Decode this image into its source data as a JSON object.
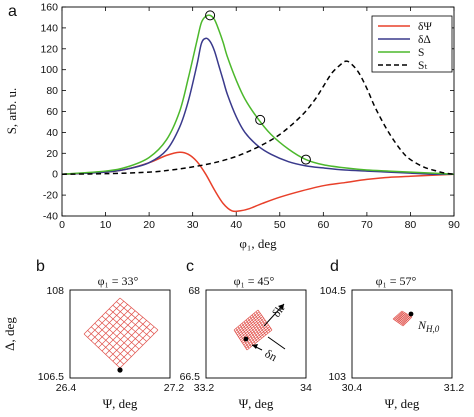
{
  "chart_data": [
    {
      "type": "line",
      "panel_label": "a",
      "xlabel": "φ₁, deg",
      "ylabel": "S, arb. u.",
      "xlim": [
        0,
        90
      ],
      "ylim": [
        -40,
        160
      ],
      "xticks": [
        "0",
        "10",
        "20",
        "30",
        "40",
        "50",
        "60",
        "70",
        "80",
        "90"
      ],
      "yticks": [
        "-40",
        "-20",
        "0",
        "20",
        "40",
        "60",
        "80",
        "100",
        "120",
        "140",
        "160"
      ],
      "legend_position": "top-right",
      "series": [
        {
          "name": "δΨ",
          "color": "#e8402a",
          "style": "solid",
          "x": [
            0,
            10,
            15,
            20,
            24,
            27,
            29,
            31,
            33,
            35,
            37,
            39,
            41,
            43,
            46,
            50,
            55,
            60,
            65,
            70,
            75,
            80,
            85,
            90
          ],
          "y": [
            0,
            2,
            5,
            11,
            18,
            21,
            19,
            12,
            0,
            -15,
            -28,
            -35,
            -35,
            -33,
            -28,
            -22,
            -16,
            -11,
            -8,
            -5,
            -3,
            -2,
            -1,
            0
          ]
        },
        {
          "name": "δΔ",
          "color": "#3a3a8c",
          "style": "solid",
          "x": [
            0,
            10,
            15,
            20,
            24,
            27,
            29,
            31,
            32,
            33,
            34,
            35,
            36,
            37,
            38,
            40,
            42,
            45,
            48,
            52,
            56,
            60,
            65,
            70,
            75,
            80,
            85,
            90
          ],
          "y": [
            0,
            2,
            5,
            11,
            23,
            45,
            70,
            105,
            125,
            130,
            127,
            118,
            104,
            90,
            76,
            55,
            40,
            27,
            19,
            12,
            8,
            6,
            4,
            3,
            2,
            1,
            0,
            0
          ]
        },
        {
          "name": "S",
          "color": "#4cb82c",
          "style": "solid",
          "x": [
            0,
            10,
            15,
            20,
            24,
            27,
            29,
            31,
            32,
            33,
            34,
            35,
            36,
            37,
            38,
            40,
            42,
            45,
            48,
            52,
            56,
            60,
            65,
            70,
            75,
            80,
            85,
            90
          ],
          "y": [
            0,
            3,
            7,
            16,
            33,
            60,
            92,
            128,
            145,
            151,
            152,
            148,
            138,
            126,
            112,
            90,
            72,
            53,
            38,
            24,
            14,
            9,
            6,
            4,
            3,
            2,
            1,
            0
          ]
        },
        {
          "name": "Sₜ",
          "color": "#000000",
          "style": "dashed",
          "x": [
            0,
            10,
            20,
            25,
            30,
            35,
            40,
            45,
            50,
            55,
            58,
            60,
            62,
            64,
            65,
            66,
            68,
            70,
            72,
            75,
            78,
            80,
            83,
            86,
            88,
            90
          ],
          "y": [
            0,
            0.5,
            2,
            4,
            7,
            11,
            17,
            26,
            38,
            56,
            71,
            84,
            97,
            105,
            108,
            107,
            98,
            82,
            63,
            40,
            22,
            14,
            7,
            3,
            1,
            0
          ]
        }
      ],
      "markers": [
        {
          "x": 34,
          "y": 152
        },
        {
          "x": 45.5,
          "y": 52
        },
        {
          "x": 56,
          "y": 14
        }
      ]
    },
    {
      "type": "mesh",
      "panel_label": "b",
      "title": "φ₁ = 33°",
      "xlabel": "Ψ, deg",
      "ylabel": "Δ, deg",
      "xticks": [
        "26.4",
        "27.2"
      ],
      "yticks": [
        "108",
        "106.5"
      ],
      "grid_divisions": 10
    },
    {
      "type": "mesh",
      "panel_label": "c",
      "title": "φ₁ = 45°",
      "xlabel": "Ψ, deg",
      "xticks": [
        "33.2",
        "34"
      ],
      "yticks": [
        "68",
        "66.5"
      ],
      "grid_divisions": 12,
      "arrow_labels": [
        "δk",
        "δn"
      ]
    },
    {
      "type": "mesh",
      "panel_label": "d",
      "title": "φ₁ = 57°",
      "xlabel": "Ψ, deg",
      "xticks": [
        "30.4",
        "31.2"
      ],
      "yticks": [
        "104.5",
        "103"
      ],
      "grid_divisions": 8,
      "point_label": "N",
      "point_label_sub": "H,0"
    }
  ]
}
